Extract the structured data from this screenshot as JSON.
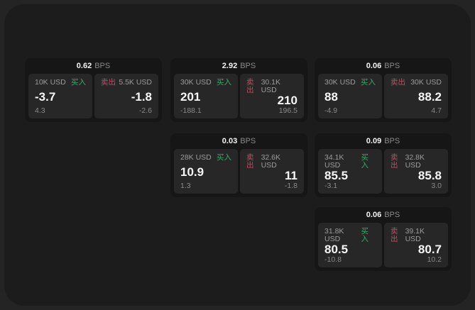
{
  "unit_label": "BPS",
  "buy_label": "买入",
  "sell_label": "卖出",
  "colors": {
    "buy_accent": "#3aa76d",
    "sell_accent": "#c64a63",
    "surface": "#1c1c1c",
    "card_background": "#161616",
    "panel_background": "#272727"
  },
  "cards": [
    {
      "bps": "0.62",
      "buy": {
        "amount": "10K USD",
        "price": "-3.7",
        "delta": "4.3"
      },
      "sell": {
        "amount": "5.5K USD",
        "price": "-1.8",
        "delta": "-2.6"
      }
    },
    {
      "bps": "2.92",
      "buy": {
        "amount": "30K USD",
        "price": "201",
        "delta": "-188.1"
      },
      "sell": {
        "amount": "30.1K USD",
        "price": "210",
        "delta": "196.5"
      }
    },
    {
      "bps": "0.06",
      "buy": {
        "amount": "30K USD",
        "price": "88",
        "delta": "-4.9"
      },
      "sell": {
        "amount": "30K USD",
        "price": "88.2",
        "delta": "4.7"
      }
    },
    {
      "bps": "0.03",
      "buy": {
        "amount": "28K USD",
        "price": "10.9",
        "delta": "1.3"
      },
      "sell": {
        "amount": "32.6K USD",
        "price": "11",
        "delta": "-1.8"
      }
    },
    {
      "bps": "0.09",
      "buy": {
        "amount": "34.1K USD",
        "price": "85.5",
        "delta": "-3.1"
      },
      "sell": {
        "amount": "32.8K USD",
        "price": "85.8",
        "delta": "3.0"
      }
    },
    {
      "bps": "0.06",
      "buy": {
        "amount": "31.8K USD",
        "price": "80.5",
        "delta": "-10.8"
      },
      "sell": {
        "amount": "39.1K USD",
        "price": "80.7",
        "delta": "10.2"
      }
    }
  ]
}
